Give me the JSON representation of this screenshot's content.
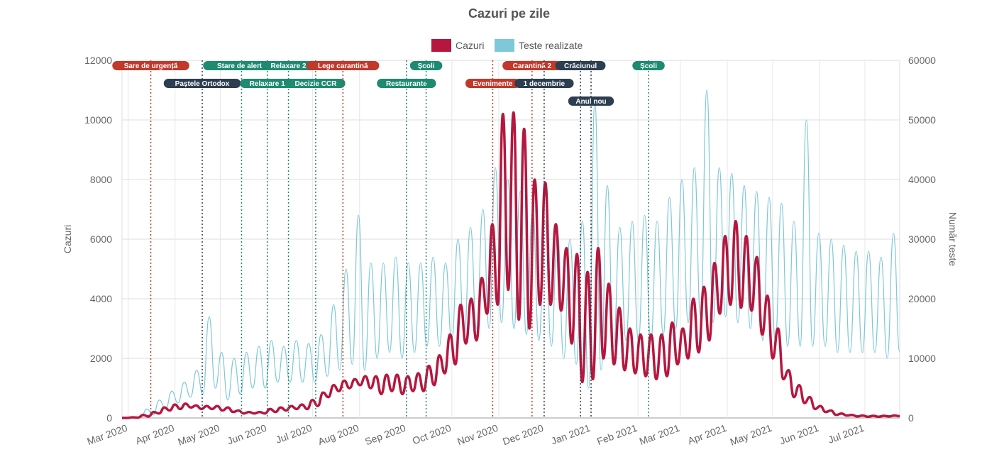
{
  "chart_data": {
    "type": "line",
    "title": "Cazuri pe zile",
    "ylabel": "Cazuri",
    "ylabel_right": "Număr teste",
    "ylim": [
      0,
      12000
    ],
    "ylim_right": [
      0,
      60000
    ],
    "y_ticks": [
      "0",
      "2000",
      "4000",
      "6000",
      "8000",
      "10000",
      "12000"
    ],
    "y_ticks_right": [
      "0",
      "10000",
      "20000",
      "30000",
      "40000",
      "50000",
      "60000"
    ],
    "x_range": [
      "2020-02-26",
      "2021-07-24"
    ],
    "x_ticks": [
      {
        "date": "2020-03-01",
        "label": "Mar 2020"
      },
      {
        "date": "2020-04-01",
        "label": "Apr 2020"
      },
      {
        "date": "2020-05-01",
        "label": "May 2020"
      },
      {
        "date": "2020-06-01",
        "label": "Jun 2020"
      },
      {
        "date": "2020-07-01",
        "label": "Jul 2020"
      },
      {
        "date": "2020-08-01",
        "label": "Aug 2020"
      },
      {
        "date": "2020-09-01",
        "label": "Sep 2020"
      },
      {
        "date": "2020-10-01",
        "label": "Oct 2020"
      },
      {
        "date": "2020-11-01",
        "label": "Nov 2020"
      },
      {
        "date": "2020-12-01",
        "label": "Dec 2020"
      },
      {
        "date": "2021-01-01",
        "label": "Jan 2021"
      },
      {
        "date": "2021-02-01",
        "label": "Feb 2021"
      },
      {
        "date": "2021-03-01",
        "label": "Mar 2021"
      },
      {
        "date": "2021-04-01",
        "label": "Apr 2021"
      },
      {
        "date": "2021-05-01",
        "label": "May 2021"
      },
      {
        "date": "2021-06-01",
        "label": "Jun 2021"
      },
      {
        "date": "2021-07-01",
        "label": "Jul 2021"
      }
    ],
    "legend": "top",
    "series": [
      {
        "name": "Cazuri",
        "color": "#b5173f",
        "axis": "left",
        "values": [
          0,
          0,
          20,
          10,
          100,
          50,
          200,
          150,
          350,
          250,
          450,
          300,
          480,
          350,
          420,
          300,
          400,
          300,
          400,
          250,
          350,
          200,
          250,
          150,
          200,
          150,
          200,
          150,
          300,
          200,
          350,
          250,
          400,
          300,
          450,
          300,
          600,
          400,
          850,
          700,
          1100,
          900,
          1250,
          1000,
          1300,
          1100,
          1400,
          1000,
          1400,
          800,
          1450,
          900,
          1450,
          800,
          1400,
          900,
          1500,
          900,
          1750,
          1100,
          2100,
          1500,
          2800,
          1800,
          3800,
          2500,
          4000,
          2600,
          4700,
          3500,
          6500,
          3800,
          10200,
          4300,
          10250,
          3300,
          9700,
          3000,
          8000,
          3800,
          7900,
          3800,
          6500,
          3600,
          5700,
          2500,
          5500,
          1200,
          4900,
          1300,
          5700,
          2000,
          4500,
          1800,
          3700,
          1600,
          3000,
          1500,
          2800,
          1400,
          2800,
          1300,
          2800,
          1400,
          3200,
          1800,
          3000,
          2000,
          4000,
          2200,
          4400,
          2600,
          5200,
          3500,
          6100,
          3800,
          6600,
          3700,
          6100,
          3600,
          5400,
          2800,
          4100,
          2000,
          3000,
          1300,
          1600,
          700,
          1100,
          500,
          700,
          300,
          400,
          200,
          250,
          100,
          150,
          80,
          100,
          50,
          80,
          40,
          70,
          40,
          70,
          50,
          80,
          60
        ]
      },
      {
        "name": "Teste realizate",
        "color": "#7ec8d8",
        "axis": "right",
        "values": [
          0,
          0,
          200,
          100,
          1500,
          500,
          3000,
          1500,
          4500,
          2500,
          6000,
          3500,
          8000,
          4000,
          17000,
          5000,
          11000,
          3000,
          10000,
          4000,
          11000,
          5000,
          12000,
          5000,
          13000,
          6000,
          12000,
          6000,
          13000,
          6000,
          12500,
          6000,
          14000,
          7000,
          19000,
          8000,
          25000,
          9000,
          34000,
          8000,
          26000,
          10000,
          26000,
          11000,
          27000,
          10000,
          26000,
          11000,
          26000,
          12000,
          27000,
          12000,
          26000,
          13000,
          30000,
          14000,
          32000,
          15000,
          35000,
          15000,
          42000,
          16000,
          40000,
          15000,
          38000,
          14000,
          35000,
          13000,
          33000,
          12000,
          31000,
          10000,
          30000,
          9000,
          33000,
          5000,
          53000,
          8000,
          39000,
          12000,
          32000,
          13000,
          33000,
          13000,
          34000,
          13000,
          33000,
          14000,
          37000,
          15000,
          40000,
          16000,
          42000,
          17000,
          55000,
          16000,
          42000,
          17000,
          41000,
          16000,
          39000,
          15000,
          38000,
          13000,
          37000,
          13000,
          36000,
          12000,
          33000,
          12000,
          50000,
          12000,
          31000,
          12000,
          30000,
          11000,
          29000,
          11000,
          28000,
          11000,
          28000,
          11000,
          27000,
          10000,
          31000,
          11000
        ]
      }
    ],
    "annotations": [
      {
        "label": "Sare de urgență",
        "date": "2020-03-16",
        "color": "#c0392b",
        "row": 1
      },
      {
        "label": "Paștele Ortodox",
        "date": "2020-04-19",
        "color": "#2c3e50",
        "row": 2
      },
      {
        "label": "Stare de alertă",
        "date": "2020-05-15",
        "color": "#1e8a72",
        "row": 1
      },
      {
        "label": "Relaxare 1",
        "date": "2020-06-01",
        "color": "#1e8a72",
        "row": 2
      },
      {
        "label": "Relaxare 2",
        "date": "2020-06-15",
        "color": "#1e8a72",
        "row": 1
      },
      {
        "label": "Decizie CCR",
        "date": "2020-07-03",
        "color": "#1e8a72",
        "row": 2
      },
      {
        "label": "Lege carantină",
        "date": "2020-07-21",
        "color": "#c0392b",
        "row": 1
      },
      {
        "label": "Restaurante",
        "date": "2020-09-01",
        "color": "#1e8a72",
        "row": 2
      },
      {
        "label": "Școli",
        "date": "2020-09-14",
        "color": "#1e8a72",
        "row": 1
      },
      {
        "label": "Evenimente",
        "date": "2020-10-28",
        "color": "#c0392b",
        "row": 2
      },
      {
        "label": "Carantină 2",
        "date": "2020-11-23",
        "color": "#c0392b",
        "row": 1
      },
      {
        "label": "1 decembrie",
        "date": "2020-12-01",
        "color": "#2c3e50",
        "row": 2
      },
      {
        "label": "Crăciunul",
        "date": "2020-12-25",
        "color": "#2c3e50",
        "row": 1
      },
      {
        "label": "Anul nou",
        "date": "2021-01-01",
        "color": "#2c3e50",
        "row": 3
      },
      {
        "label": "Școli",
        "date": "2021-02-08",
        "color": "#1e8a72",
        "row": 1
      }
    ]
  }
}
